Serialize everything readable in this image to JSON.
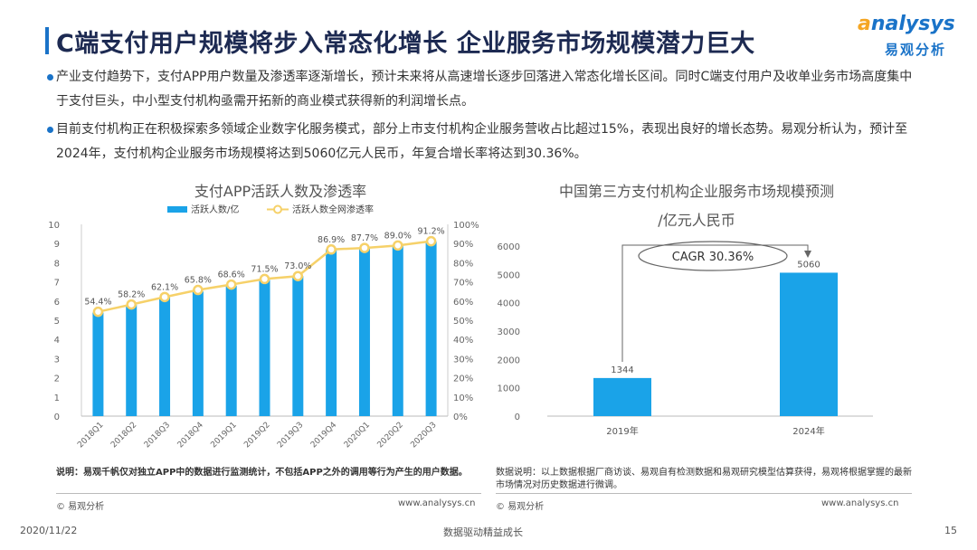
{
  "title": "C端支付用户规模将步入常态化增长 企业服务市场规模潜力巨大",
  "logo": {
    "word_a": "a",
    "word_rest": "nalysys",
    "sub": "易观分析"
  },
  "bullets": [
    "产业支付趋势下，支付APP用户数量及渗透率逐渐增长，预计未来将从高速增长逐步回落进入常态化增长区间。同时C端支付用户及收单业务市场高度集中于支付巨头，中小型支付机构亟需开拓新的商业模式获得新的利润增长点。",
    "目前支付机构正在积极探索多领域企业数字化服务模式，部分上市支付机构企业服务营收占比超过15%，表现出良好的增长态势。易观分析认为，预计至2024年，支付机构企业服务市场规模将达到5060亿元人民币，年复合增长率将达到30.36%。"
  ],
  "left_note": "说明：易观千帆仅对独立APP中的数据进行监测统计，不包括APP之外的调用等行为产生的用户数据。",
  "right_note": "数据说明：以上数据根据厂商访谈、易观自有检测数据和易观研究模型估算获得，易观将根据掌握的最新市场情况对历史数据进行微调。",
  "left_copyright": "© 易观分析",
  "left_url": "www.analysys.cn",
  "right_copyright": "© 易观分析",
  "right_url": "www.analysys.cn",
  "footer": {
    "date": "2020/11/22",
    "slogan": "数据驱动精益成长",
    "page": "15"
  },
  "colors": {
    "bar": "#1aa3e8",
    "line": "#f6d169",
    "title": "#1d2a52",
    "accent": "#1a73c8"
  },
  "chart_data": [
    {
      "type": "bar",
      "title": "支付APP活跃人数及渗透率",
      "categories": [
        "2018Q1",
        "2018Q2",
        "2018Q3",
        "2018Q4",
        "2019Q1",
        "2019Q2",
        "2019Q3",
        "2019Q4",
        "2020Q1",
        "2020Q2",
        "2020Q3"
      ],
      "series": [
        {
          "name": "活跃人数/亿",
          "type": "bar",
          "axis": "left",
          "values": [
            5.4,
            5.8,
            6.2,
            6.5,
            6.8,
            7.1,
            7.3,
            8.7,
            8.8,
            8.9,
            9.1
          ]
        },
        {
          "name": "活跃人数全网渗透率",
          "type": "line",
          "axis": "right",
          "values": [
            54.4,
            58.2,
            62.1,
            65.8,
            68.6,
            71.5,
            73.0,
            86.9,
            87.7,
            89.0,
            91.2
          ],
          "labels": [
            "54.4%",
            "58.2%",
            "62.1%",
            "65.8%",
            "68.6%",
            "71.5%",
            "73.0%",
            "86.9%",
            "87.7%",
            "89.0%",
            "91.2%"
          ]
        }
      ],
      "ylim": [
        0,
        10
      ],
      "y_ticks": [
        "0",
        "1",
        "2",
        "3",
        "4",
        "5",
        "6",
        "7",
        "8",
        "9",
        "10"
      ],
      "y2lim": [
        0,
        100
      ],
      "y2_ticks": [
        "0%",
        "10%",
        "20%",
        "30%",
        "40%",
        "50%",
        "60%",
        "70%",
        "80%",
        "90%",
        "100%"
      ],
      "legend": "top",
      "grid": false
    },
    {
      "type": "bar",
      "title": "中国第三方支付机构企业服务市场规模预测",
      "subtitle": "/亿元人民币",
      "categories": [
        "2019年",
        "2024年"
      ],
      "values": [
        1344,
        5060
      ],
      "labels": [
        "1344",
        "5060"
      ],
      "ylim": [
        0,
        6000
      ],
      "y_ticks": [
        "0",
        "1000",
        "2000",
        "3000",
        "4000",
        "5000",
        "6000"
      ],
      "annotation": "CAGR 30.36%",
      "grid": false
    }
  ]
}
